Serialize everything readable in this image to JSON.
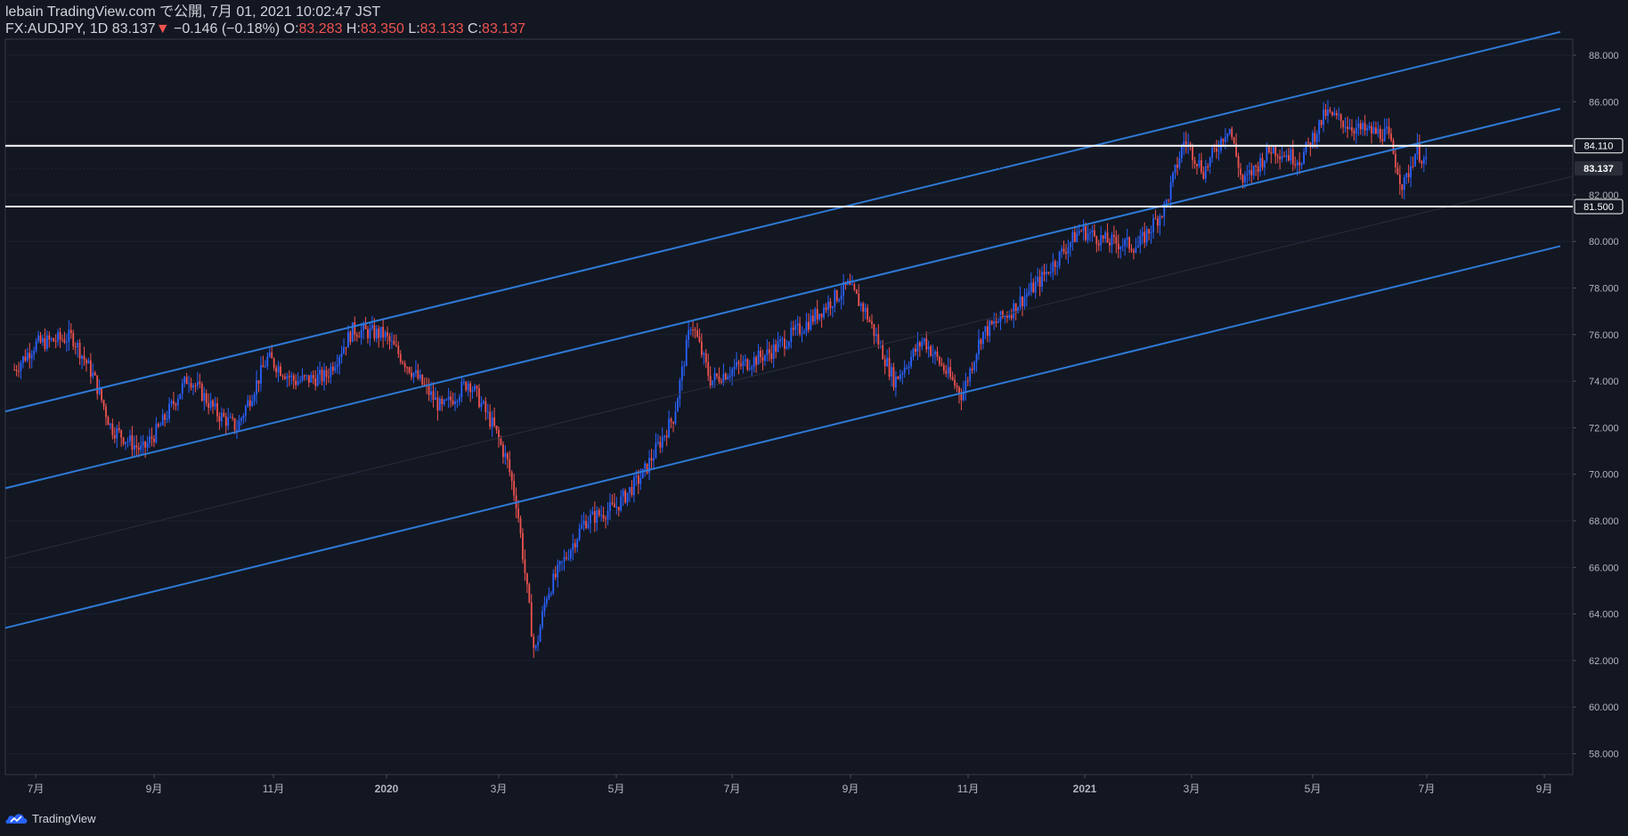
{
  "header": {
    "publish_line": "lebain TradingView.com で公開, 7月 01, 2021 10:02:47 JST",
    "symbol": "FX:AUDJPY, 1D",
    "last": "83.137",
    "change": "−0.146 (−0.18%)",
    "o_label": "O:",
    "o_value": "83.283",
    "h_label": "H:",
    "h_value": "83.350",
    "l_label": "L:",
    "l_value": "83.133",
    "c_label": "C:",
    "c_value": "83.137"
  },
  "footer": {
    "brand": "TradingView"
  },
  "colors": {
    "background": "#131722",
    "up": "#2962ff",
    "down": "#ef5350",
    "channel": "#2e7ad6",
    "hline": "#ffffff",
    "axis_text": "#b2b5be"
  },
  "chart_data": {
    "type": "candlestick",
    "title": "FX:AUDJPY, 1D",
    "x_ticks": [
      "7月",
      "9月",
      "11月",
      "2020",
      "3月",
      "5月",
      "7月",
      "9月",
      "11月",
      "2021",
      "3月",
      "5月",
      "7月",
      "9月"
    ],
    "y_ticks": [
      "88.000",
      "86.000",
      "84.000",
      "82.000",
      "80.000",
      "78.000",
      "76.000",
      "74.000",
      "72.000",
      "70.000",
      "68.000",
      "66.000",
      "64.000",
      "62.000",
      "60.000",
      "58.000"
    ],
    "ylim": [
      57.5,
      88.5
    ],
    "price_labels": [
      "84.110",
      "83.137",
      "81.500"
    ],
    "horizontal_lines": [
      84.11,
      81.5
    ],
    "last_price": 83.137,
    "channel_lines": [
      {
        "from": [
          "2019-06",
          72.7
        ],
        "to": [
          "2021-09",
          89.0
        ]
      },
      {
        "from": [
          "2019-06",
          69.4
        ],
        "to": [
          "2021-09",
          85.7
        ]
      },
      {
        "from": [
          "2019-06",
          63.4
        ],
        "to": [
          "2021-09",
          79.8
        ]
      }
    ],
    "price_path": [
      [
        "2019-06-20",
        74.5
      ],
      [
        "2019-07-01",
        75.6
      ],
      [
        "2019-07-20",
        75.9
      ],
      [
        "2019-07-31",
        74.2
      ],
      [
        "2019-08-10",
        72.0
      ],
      [
        "2019-08-26",
        71.0
      ],
      [
        "2019-09-05",
        72.0
      ],
      [
        "2019-09-20",
        74.2
      ],
      [
        "2019-10-05",
        72.6
      ],
      [
        "2019-10-15",
        72.0
      ],
      [
        "2019-11-01",
        75.0
      ],
      [
        "2019-11-15",
        74.0
      ],
      [
        "2019-12-01",
        74.2
      ],
      [
        "2019-12-15",
        76.2
      ],
      [
        "2019-12-31",
        76.0
      ],
      [
        "2020-01-15",
        74.5
      ],
      [
        "2020-01-31",
        72.8
      ],
      [
        "2020-02-15",
        74.0
      ],
      [
        "2020-02-28",
        72.0
      ],
      [
        "2020-03-05",
        70.5
      ],
      [
        "2020-03-10",
        68.6
      ],
      [
        "2020-03-19",
        62.2
      ],
      [
        "2020-03-25",
        64.8
      ],
      [
        "2020-04-01",
        65.8
      ],
      [
        "2020-04-15",
        68.0
      ],
      [
        "2020-05-01",
        68.6
      ],
      [
        "2020-05-15",
        70.0
      ],
      [
        "2020-06-01",
        72.5
      ],
      [
        "2020-06-10",
        76.6
      ],
      [
        "2020-06-20",
        74.0
      ],
      [
        "2020-07-01",
        74.5
      ],
      [
        "2020-07-20",
        75.2
      ],
      [
        "2020-08-10",
        76.5
      ],
      [
        "2020-08-31",
        78.1
      ],
      [
        "2020-09-10",
        77.0
      ],
      [
        "2020-09-25",
        74.0
      ],
      [
        "2020-10-10",
        75.8
      ],
      [
        "2020-10-30",
        73.4
      ],
      [
        "2020-11-10",
        76.0
      ],
      [
        "2020-11-25",
        77.0
      ],
      [
        "2020-12-10",
        78.3
      ],
      [
        "2020-12-31",
        80.5
      ],
      [
        "2021-01-15",
        80.0
      ],
      [
        "2021-01-31",
        79.8
      ],
      [
        "2021-02-15",
        81.5
      ],
      [
        "2021-02-25",
        84.4
      ],
      [
        "2021-03-05",
        83.0
      ],
      [
        "2021-03-18",
        85.0
      ],
      [
        "2021-03-25",
        82.5
      ],
      [
        "2021-04-10",
        84.0
      ],
      [
        "2021-04-25",
        83.5
      ],
      [
        "2021-05-08",
        85.5
      ],
      [
        "2021-05-25",
        84.8
      ],
      [
        "2021-06-10",
        84.6
      ],
      [
        "2021-06-18",
        82.3
      ],
      [
        "2021-06-25",
        84.0
      ],
      [
        "2021-07-01",
        83.14
      ]
    ]
  }
}
